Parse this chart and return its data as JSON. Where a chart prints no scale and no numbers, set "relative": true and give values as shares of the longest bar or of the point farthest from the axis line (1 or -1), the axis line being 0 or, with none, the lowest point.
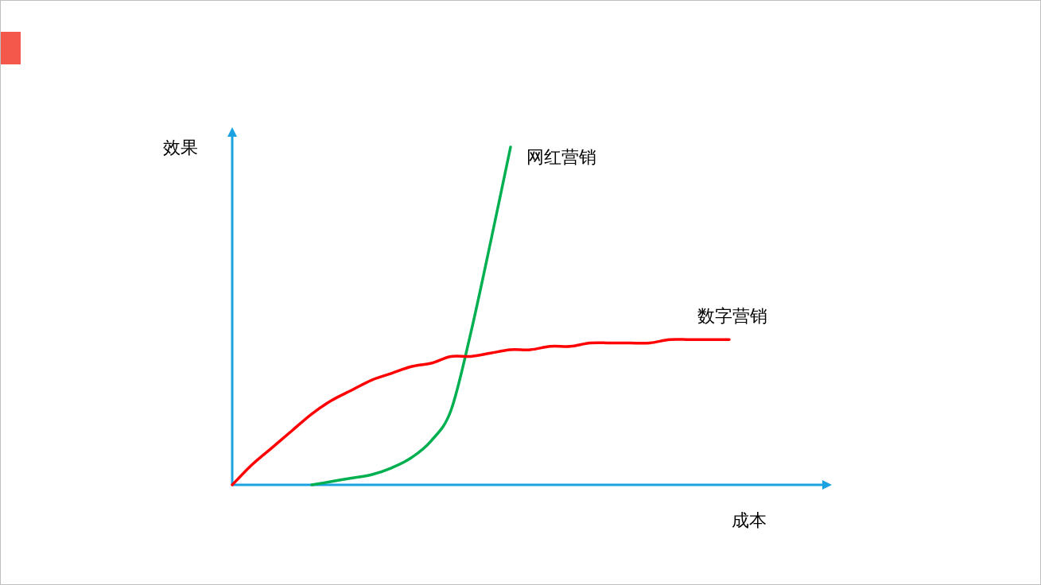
{
  "chart_data": {
    "type": "line",
    "relative": true,
    "xlabel": "成本",
    "ylabel": "效果",
    "categories": [
      null,
      null,
      null,
      null,
      null,
      null,
      null,
      null,
      null,
      null,
      null,
      null,
      null,
      null,
      null,
      null,
      null,
      null,
      null,
      null,
      null,
      null,
      null,
      null,
      null,
      null
    ],
    "series": [
      {
        "name": "网红营销",
        "color": "#00b050",
        "values": [
          null,
          null,
          null,
          null,
          0.0,
          0.01,
          0.02,
          0.03,
          0.05,
          0.08,
          0.13,
          0.22,
          0.45,
          0.72,
          1.0,
          null,
          null,
          null,
          null,
          null,
          null,
          null,
          null,
          null,
          null,
          null
        ]
      },
      {
        "name": "数字营销",
        "color": "#ff0000",
        "values": [
          0.0,
          0.06,
          0.11,
          0.16,
          0.21,
          0.25,
          0.28,
          0.31,
          0.33,
          0.35,
          0.36,
          0.38,
          0.38,
          0.39,
          0.4,
          0.4,
          0.41,
          0.41,
          0.42,
          0.42,
          0.42,
          0.42,
          0.43,
          0.43,
          0.43,
          0.43
        ]
      }
    ]
  }
}
